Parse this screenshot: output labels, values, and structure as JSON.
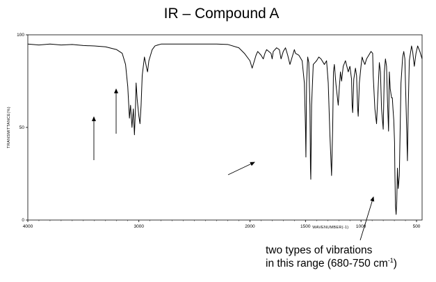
{
  "title": "IR – Compound A",
  "annotation": {
    "line1": "two types of vibrations",
    "line2_prefix": "in this range (680-750 cm",
    "line2_sup": "-1",
    "line2_suffix": ")"
  },
  "chart_data": {
    "type": "line",
    "xlabel": "WAVENUMBER(-1)",
    "ylabel": "TRANSMITTANCE(%)",
    "x_reversed": true,
    "xlim": [
      4000,
      450
    ],
    "ylim": [
      0,
      100
    ],
    "x_ticks": [
      {
        "value": 4000,
        "label": "4000"
      },
      {
        "value": 3000,
        "label": "3000"
      },
      {
        "value": 2000,
        "label": "2000"
      },
      {
        "value": 1500,
        "label": "1500"
      },
      {
        "value": 1000,
        "label": "1000"
      },
      {
        "value": 500,
        "label": "500"
      }
    ],
    "y_ticks": [
      {
        "value": 0,
        "label": "0"
      },
      {
        "value": 50,
        "label": "50"
      },
      {
        "value": 100,
        "label": "100"
      }
    ],
    "grid": false,
    "series": [
      {
        "color": "#000000",
        "x": [
          4000,
          3900,
          3800,
          3700,
          3600,
          3500,
          3400,
          3300,
          3200,
          3150,
          3120,
          3100,
          3085,
          3075,
          3062,
          3050,
          3040,
          3032,
          3025,
          3015,
          3000,
          2990,
          2980,
          2970,
          2950,
          2930,
          2922,
          2910,
          2880,
          2855,
          2830,
          2800,
          2700,
          2600,
          2500,
          2400,
          2300,
          2200,
          2100,
          2050,
          2000,
          1980,
          1960,
          1945,
          1930,
          1900,
          1880,
          1865,
          1850,
          1810,
          1800,
          1790,
          1760,
          1735,
          1720,
          1700,
          1680,
          1660,
          1640,
          1610,
          1600,
          1590,
          1560,
          1530,
          1510,
          1500,
          1496,
          1490,
          1480,
          1470,
          1460,
          1455,
          1452,
          1445,
          1430,
          1400,
          1380,
          1360,
          1330,
          1310,
          1295,
          1280,
          1265,
          1255,
          1248,
          1240,
          1225,
          1205,
          1195,
          1185,
          1175,
          1160,
          1140,
          1115,
          1100,
          1085,
          1080,
          1075,
          1065,
          1050,
          1040,
          1030,
          1025,
          1015,
          1000,
          990,
          980,
          965,
          950,
          930,
          910,
          895,
          890,
          875,
          860,
          845,
          835,
          825,
          815,
          800,
          790,
          780,
          770,
          762,
          752,
          745,
          737,
          730,
          725,
          718,
          712,
          705,
          698,
          695,
          690,
          684,
          678,
          672,
          665,
          655,
          640,
          625,
          615,
          605,
          598,
          590,
          582,
          575,
          565,
          555,
          545,
          535,
          520,
          505,
          490,
          470,
          450
        ],
        "y": [
          95,
          94.5,
          95,
          94.5,
          94.8,
          94.2,
          94,
          93.5,
          92,
          90,
          84,
          72,
          55,
          62,
          50,
          60,
          46,
          58,
          74,
          65,
          56,
          52,
          62,
          78,
          88,
          82,
          80,
          86,
          92,
          94,
          94.5,
          95,
          95,
          95,
          95,
          95,
          95,
          94.8,
          93,
          90,
          86,
          82,
          86,
          89,
          91,
          89,
          87,
          90,
          92,
          90,
          87,
          91,
          93,
          92,
          87,
          91,
          93,
          89,
          84,
          90,
          92,
          90,
          89,
          86,
          74,
          50,
          34,
          74,
          88,
          85,
          62,
          28,
          22,
          62,
          84,
          86,
          88,
          87,
          84,
          86,
          74,
          46,
          24,
          50,
          80,
          84,
          73,
          62,
          72,
          80,
          75,
          83,
          86,
          80,
          83,
          76,
          62,
          58,
          76,
          82,
          78,
          60,
          56,
          74,
          83,
          88,
          86,
          84,
          87,
          89,
          91,
          90,
          78,
          60,
          52,
          72,
          85,
          80,
          60,
          49,
          80,
          87,
          83,
          65,
          48,
          80,
          71,
          68,
          66,
          66,
          60,
          54,
          42,
          26,
          8,
          3,
          10,
          28,
          17,
          24,
          74,
          88,
          91,
          87,
          70,
          52,
          32,
          60,
          86,
          90,
          94,
          91,
          83,
          90,
          94,
          91,
          87
        ]
      }
    ]
  }
}
